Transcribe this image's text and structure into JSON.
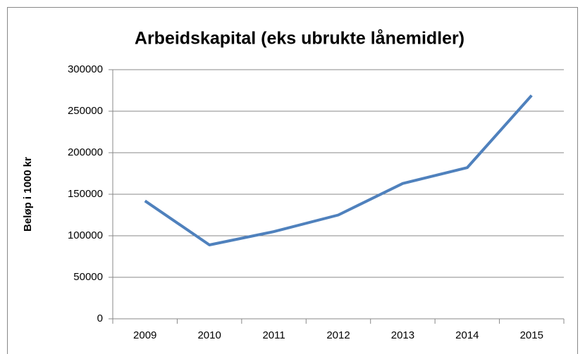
{
  "chart_data": {
    "type": "line",
    "title": "Arbeidskapital (eks ubrukte lånemidler)",
    "y_label": "Beløp i 1000 kr",
    "categories": [
      "2009",
      "2010",
      "2011",
      "2012",
      "2013",
      "2014",
      "2015"
    ],
    "values": [
      142000,
      89000,
      105000,
      125000,
      163000,
      182000,
      269000
    ],
    "color": "#4f81bd",
    "ylim": [
      0,
      300000
    ],
    "yticks": [
      0,
      50000,
      100000,
      150000,
      200000,
      250000,
      300000
    ],
    "grid": true
  }
}
